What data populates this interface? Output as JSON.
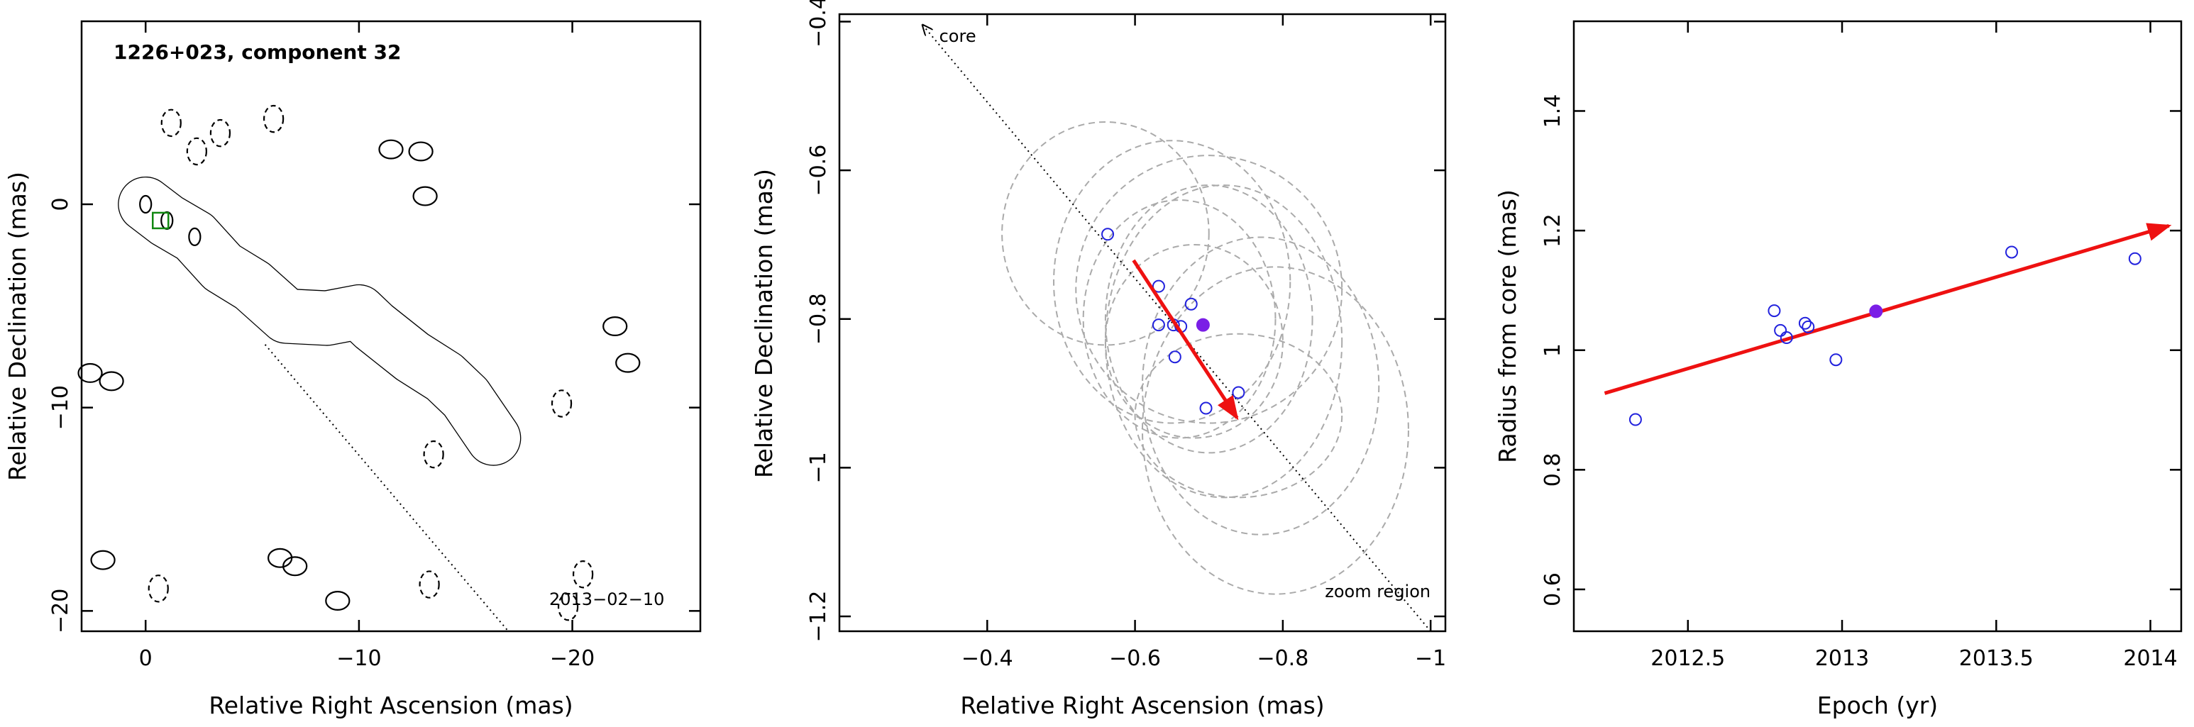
{
  "colors": {
    "frame": "#000000",
    "contour": "#000000",
    "ellipse": "#aaaaaa",
    "point": "#2222dd",
    "highlight": "#7a1ee6",
    "arrow": "#ee1111",
    "box": "#118811"
  },
  "chart_data": [
    {
      "type": "contour",
      "title": "1226+023, component 32",
      "epoch_label": "2013−02−10",
      "xlabel": "Relative Right Ascension (mas)",
      "ylabel": "Relative Declination (mas)",
      "xlim": [
        3,
        -26
      ],
      "ylim": [
        -21,
        9
      ],
      "xticks": [
        0,
        -10,
        -20
      ],
      "xtick_labels": [
        "0",
        "−10",
        "−20"
      ],
      "yticks": [
        0,
        -10,
        -20
      ],
      "ytick_labels": [
        "0",
        "−10",
        "−20"
      ],
      "x_scale": "linear (RA increases to the left)",
      "component_box_center": [
        -0.7,
        -0.8
      ],
      "direction_line": {
        "from": [
          0,
          0
        ],
        "to": [
          -17,
          -21
        ],
        "style": "dotted"
      },
      "jet_ridge": [
        [
          0,
          0
        ],
        [
          -1,
          -0.8
        ],
        [
          -2.3,
          -1.6
        ],
        [
          -3.6,
          -3.1
        ],
        [
          -5,
          -4
        ],
        [
          -6.6,
          -5.5
        ],
        [
          -8.5,
          -5.6
        ],
        [
          -10,
          -5.3
        ],
        [
          -10.7,
          -6
        ],
        [
          -12.5,
          -7.5
        ],
        [
          -14,
          -8.5
        ],
        [
          -15,
          -9.5
        ],
        [
          -16.3,
          -11.5
        ]
      ],
      "contour_levels": 10,
      "negative_contours": [
        [
          -1.2,
          4
        ],
        [
          -2.4,
          2.6
        ],
        [
          -3.5,
          3.5
        ],
        [
          -6,
          4.2
        ],
        [
          -13.5,
          -12.3
        ],
        [
          -13.3,
          -18.7
        ],
        [
          -19.8,
          -19.8
        ],
        [
          -20.5,
          -18.2
        ],
        [
          -19.5,
          -9.8
        ],
        [
          -0.6,
          -18.9
        ]
      ],
      "positive_blobs": [
        [
          -11.5,
          2.7
        ],
        [
          -12.9,
          2.6
        ],
        [
          -13.1,
          0.4
        ],
        [
          -6.3,
          -17.4
        ],
        [
          -7,
          -17.8
        ],
        [
          2.6,
          -8.3
        ],
        [
          2,
          -17.5
        ],
        [
          1.6,
          -8.7
        ],
        [
          -22,
          -6
        ],
        [
          -22.6,
          -7.8
        ],
        [
          -9,
          -19.5
        ]
      ]
    },
    {
      "type": "scatter",
      "xlabel": "Relative Right Ascension (mas)",
      "ylabel": "Relative Declination (mas)",
      "xlim": [
        -0.2,
        -1.02
      ],
      "ylim": [
        -1.22,
        -0.39
      ],
      "xticks": [
        -0.4,
        -0.6,
        -0.8,
        -1
      ],
      "xtick_labels": [
        "−0.4",
        "−0.6",
        "−0.8",
        "−1"
      ],
      "yticks": [
        -0.4,
        -0.6,
        -0.8,
        -1,
        -1.2
      ],
      "ytick_labels": [
        "−0.4",
        "−0.6",
        "−0.8",
        "−1",
        "−1.2"
      ],
      "points": [
        [
          -0.563,
          -0.686
        ],
        [
          -0.632,
          -0.756
        ],
        [
          -0.632,
          -0.808
        ],
        [
          -0.652,
          -0.808
        ],
        [
          -0.662,
          -0.81
        ],
        [
          -0.676,
          -0.78
        ],
        [
          -0.654,
          -0.851
        ],
        [
          -0.74,
          -0.899
        ],
        [
          -0.696,
          -0.92
        ]
      ],
      "highlight_point": [
        -0.692,
        -0.808
      ],
      "ellipses": [
        {
          "center": [
            -0.56,
            -0.685
          ],
          "rx": 0.14,
          "ry": 0.15
        },
        {
          "center": [
            -0.65,
            -0.75
          ],
          "rx": 0.16,
          "ry": 0.19
        },
        {
          "center": [
            -0.7,
            -0.76
          ],
          "rx": 0.18,
          "ry": 0.18
        },
        {
          "center": [
            -0.66,
            -0.8
          ],
          "rx": 0.13,
          "ry": 0.16
        },
        {
          "center": [
            -0.7,
            -0.8
          ],
          "rx": 0.14,
          "ry": 0.18
        },
        {
          "center": [
            -0.72,
            -0.83
          ],
          "rx": 0.16,
          "ry": 0.21
        },
        {
          "center": [
            -0.68,
            -0.83
          ],
          "rx": 0.12,
          "ry": 0.13
        },
        {
          "center": [
            -0.77,
            -0.89
          ],
          "rx": 0.16,
          "ry": 0.2
        },
        {
          "center": [
            -0.74,
            -0.93
          ],
          "rx": 0.14,
          "ry": 0.11
        },
        {
          "center": [
            -0.79,
            -0.95
          ],
          "rx": 0.18,
          "ry": 0.22
        }
      ],
      "arrow": {
        "from": [
          -0.598,
          -0.721
        ],
        "to": [
          -0.738,
          -0.933
        ]
      },
      "core_line": {
        "from": [
          -0.313,
          -0.405
        ],
        "to": [
          -1.0,
          -1.22
        ],
        "style": "dotted"
      },
      "annotations": [
        {
          "text": "core",
          "at": [
            -0.335,
            -0.427
          ]
        },
        {
          "text": "zoom region",
          "at": [
            -0.857,
            -1.174
          ]
        }
      ]
    },
    {
      "type": "scatter",
      "xlabel": "Epoch (yr)",
      "ylabel": "Radius from core (mas)",
      "xlim": [
        2012.13,
        2014.1
      ],
      "ylim": [
        0.53,
        1.55
      ],
      "xticks": [
        2012.5,
        2013,
        2013.5,
        2014
      ],
      "xtick_labels": [
        "2012.5",
        "2013",
        "2013.5",
        "2014"
      ],
      "yticks": [
        0.6,
        0.8,
        1.0,
        1.2,
        1.4
      ],
      "ytick_labels": [
        "0.6",
        "0.8",
        "1",
        "1.2",
        "1.4"
      ],
      "points": [
        [
          2012.33,
          0.884
        ],
        [
          2012.78,
          1.066
        ],
        [
          2012.8,
          1.033
        ],
        [
          2012.82,
          1.021
        ],
        [
          2012.88,
          1.045
        ],
        [
          2012.89,
          1.039
        ],
        [
          2012.98,
          0.984
        ],
        [
          2013.55,
          1.164
        ],
        [
          2013.95,
          1.153
        ]
      ],
      "highlight_point": [
        2013.11,
        1.065
      ],
      "fit_arrow": {
        "from": [
          2012.23,
          0.928
        ],
        "to": [
          2014.06,
          1.208
        ]
      }
    }
  ]
}
